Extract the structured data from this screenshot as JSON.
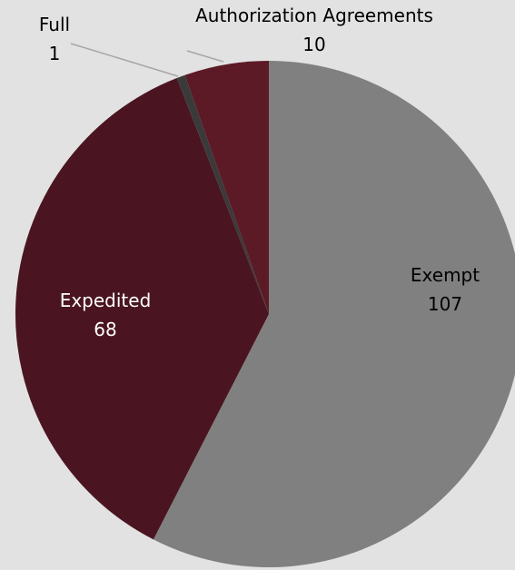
{
  "chart_data": {
    "type": "pie",
    "title": "",
    "slices": [
      {
        "label": "Exempt",
        "value": 107,
        "color": "#808080",
        "label_color": "#000000"
      },
      {
        "label": "Expedited",
        "value": 68,
        "color": "#4a1520",
        "label_color": "#ffffff"
      },
      {
        "label": "Full",
        "value": 1,
        "color": "#3a3a3a",
        "label_color": "#000000"
      },
      {
        "label": "Authorization Agreements",
        "value": 10,
        "color": "#5c1a26",
        "label_color": "#000000"
      }
    ],
    "legend": "none",
    "background": "#e2e2e2"
  }
}
